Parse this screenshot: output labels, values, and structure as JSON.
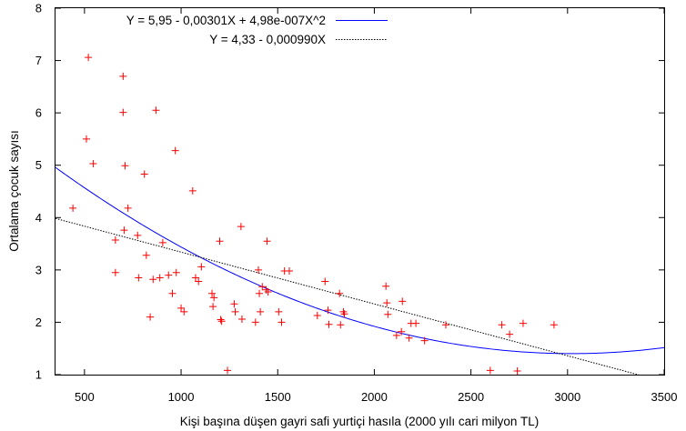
{
  "chart_data": {
    "type": "scatter",
    "title": "",
    "xlabel": "Kişi başına düşen gayri safi yurtiçi hasıla (2000 yılı cari milyon TL)",
    "ylabel": "Ortalama çocuk sayısı",
    "xlim": [
      350,
      3500
    ],
    "ylim": [
      1,
      8
    ],
    "x_ticks": [
      500,
      1000,
      1500,
      2000,
      2500,
      3000,
      3500
    ],
    "y_ticks": [
      1,
      2,
      3,
      4,
      5,
      6,
      7,
      8
    ],
    "grid": false,
    "legend_position": "top-right",
    "colors": {
      "points": "#ff0000",
      "quadratic": "#0000ff",
      "linear": "#000000"
    },
    "series": [
      {
        "type": "scatter",
        "marker": "plus",
        "points": [
          [
            440,
            4.18
          ],
          [
            510,
            5.5
          ],
          [
            520,
            7.06
          ],
          [
            545,
            5.03
          ],
          [
            660,
            3.57
          ],
          [
            660,
            2.95
          ],
          [
            700,
            6.7
          ],
          [
            700,
            6.01
          ],
          [
            705,
            3.76
          ],
          [
            710,
            4.99
          ],
          [
            725,
            4.18
          ],
          [
            775,
            3.66
          ],
          [
            780,
            2.85
          ],
          [
            810,
            4.83
          ],
          [
            820,
            3.28
          ],
          [
            840,
            2.1
          ],
          [
            855,
            2.82
          ],
          [
            870,
            6.05
          ],
          [
            890,
            2.85
          ],
          [
            905,
            3.52
          ],
          [
            935,
            2.9
          ],
          [
            955,
            2.55
          ],
          [
            970,
            5.28
          ],
          [
            975,
            2.95
          ],
          [
            1000,
            2.27
          ],
          [
            1015,
            2.2
          ],
          [
            1060,
            4.51
          ],
          [
            1075,
            2.85
          ],
          [
            1090,
            2.78
          ],
          [
            1105,
            3.06
          ],
          [
            1160,
            2.55
          ],
          [
            1165,
            2.3
          ],
          [
            1170,
            2.47
          ],
          [
            1200,
            3.55
          ],
          [
            1205,
            2.05
          ],
          [
            1210,
            2.02
          ],
          [
            1240,
            1.08
          ],
          [
            1275,
            2.35
          ],
          [
            1280,
            2.2
          ],
          [
            1310,
            3.83
          ],
          [
            1315,
            2.06
          ],
          [
            1385,
            2.0
          ],
          [
            1400,
            3.0
          ],
          [
            1405,
            2.55
          ],
          [
            1410,
            2.2
          ],
          [
            1420,
            2.68
          ],
          [
            1440,
            2.62
          ],
          [
            1445,
            3.55
          ],
          [
            1450,
            2.58
          ],
          [
            1505,
            2.2
          ],
          [
            1520,
            2.0
          ],
          [
            1535,
            2.98
          ],
          [
            1560,
            2.98
          ],
          [
            1705,
            2.13
          ],
          [
            1745,
            2.78
          ],
          [
            1760,
            2.23
          ],
          [
            1765,
            1.96
          ],
          [
            1820,
            2.55
          ],
          [
            1825,
            1.95
          ],
          [
            1840,
            2.2
          ],
          [
            1845,
            2.16
          ],
          [
            2060,
            2.69
          ],
          [
            2065,
            2.37
          ],
          [
            2070,
            2.15
          ],
          [
            2115,
            1.75
          ],
          [
            2140,
            1.82
          ],
          [
            2145,
            2.4
          ],
          [
            2180,
            1.7
          ],
          [
            2190,
            1.98
          ],
          [
            2215,
            1.98
          ],
          [
            2260,
            1.65
          ],
          [
            2370,
            1.95
          ],
          [
            2600,
            1.08
          ],
          [
            2660,
            1.95
          ],
          [
            2700,
            1.77
          ],
          [
            2740,
            1.07
          ],
          [
            2770,
            1.98
          ],
          [
            2930,
            1.95
          ]
        ]
      },
      {
        "type": "line",
        "style": "solid",
        "name": "Y = 5,95 - 0,00301X + 4,98e-007X^2",
        "coefficients": [
          5.95,
          -0.00301,
          4.98e-07
        ]
      },
      {
        "type": "line",
        "style": "dotted",
        "name": "Y = 4,33 - 0,000990X",
        "coefficients": [
          4.33,
          -0.00099
        ]
      }
    ]
  }
}
